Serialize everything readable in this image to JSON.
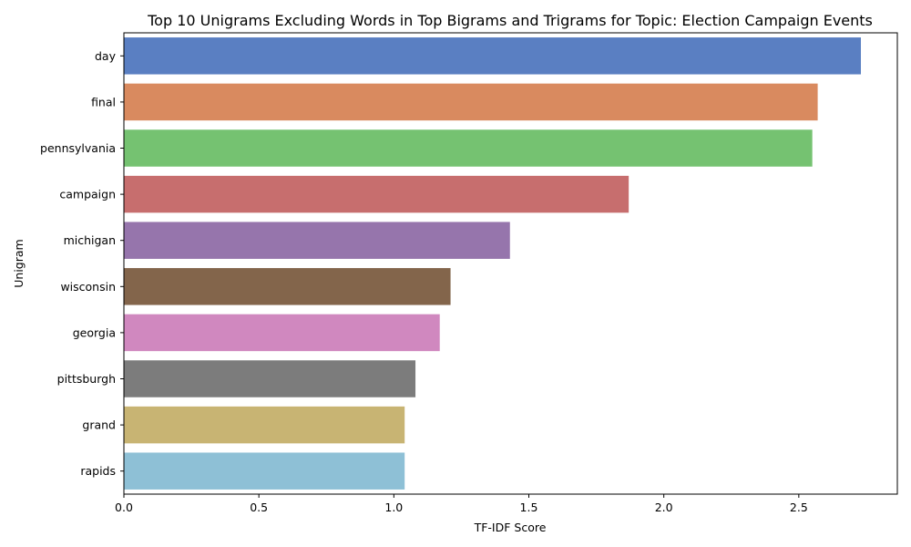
{
  "chart_data": {
    "type": "bar",
    "orientation": "horizontal",
    "title": "Top 10 Unigrams Excluding Words in Top Bigrams and Trigrams for Topic: Election Campaign Events",
    "xlabel": "TF-IDF Score",
    "ylabel": "Unigram",
    "categories": [
      "day",
      "final",
      "pennsylvania",
      "campaign",
      "michigan",
      "wisconsin",
      "georgia",
      "pittsburgh",
      "grand",
      "rapids"
    ],
    "values": [
      2.73,
      2.57,
      2.55,
      1.87,
      1.43,
      1.21,
      1.17,
      1.08,
      1.04,
      1.04
    ],
    "colors": [
      "#5a7fc2",
      "#d98a5f",
      "#75c271",
      "#c76e6e",
      "#9675ac",
      "#83654b",
      "#d088bf",
      "#7c7c7c",
      "#c8b473",
      "#8ec0d6"
    ],
    "xlim": [
      0,
      2.865
    ],
    "xticks": [
      0.0,
      0.5,
      1.0,
      1.5,
      2.0,
      2.5
    ],
    "xtick_labels": [
      "0.0",
      "0.5",
      "1.0",
      "1.5",
      "2.0",
      "2.5"
    ],
    "grid": false,
    "legend": "none"
  }
}
